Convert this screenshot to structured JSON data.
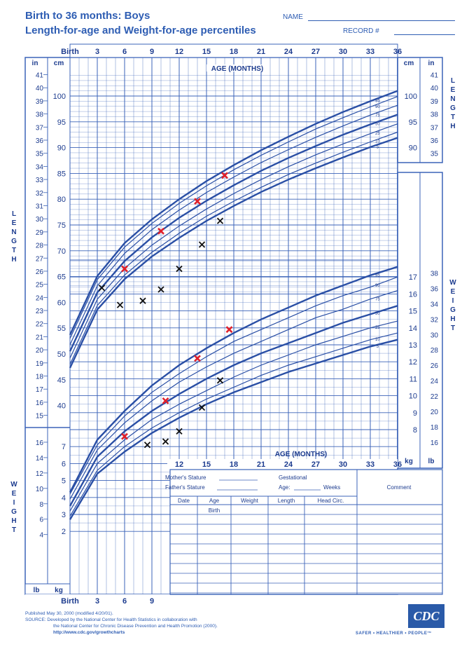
{
  "header": {
    "title": "Birth to 36 months: Boys",
    "subtitle": "Length-for-age and Weight-for-age percentiles",
    "name_label": "NAME",
    "record_label": "RECORD #"
  },
  "footer": {
    "line1": "Published May 30, 2000 (modified 4/20/01).",
    "line2": "SOURCE: Developed by the National Center for Health Statistics in collaboration with",
    "line3": "the National Center for Chronic Disease Prevention and Health Promotion (2000).",
    "line4": "http://www.cdc.gov/growthcharts",
    "logo": "CDC",
    "tagline": "SAFER • HEALTHIER • PEOPLE™"
  },
  "colors": {
    "grid": "#3b63b8",
    "curve": "#2a4fa5",
    "red_mark": "#e0202a",
    "black_mark": "#111111"
  },
  "chart_data": {
    "type": "line",
    "x_unit": "AGE (MONTHS)",
    "xlim": [
      0,
      36
    ],
    "x_ticks_top": [
      "Birth",
      "3",
      "6",
      "9",
      "12",
      "15",
      "18",
      "21",
      "24",
      "27",
      "30",
      "33",
      "36"
    ],
    "x_ticks_mid": [
      "12",
      "15",
      "18",
      "21",
      "24",
      "27",
      "30",
      "33",
      "36"
    ],
    "x_ticks_bottom": [
      "Birth",
      "3",
      "6",
      "9"
    ],
    "length_axis": {
      "title": "LENGTH",
      "cm_label": "cm",
      "in_label": "in",
      "cm_left": [
        "40",
        "45",
        "50",
        "55",
        "60",
        "65",
        "70",
        "75",
        "80",
        "85",
        "90",
        "95",
        "100"
      ],
      "cm_right": [
        "90",
        "95",
        "100"
      ],
      "in_left": [
        "15",
        "16",
        "17",
        "18",
        "19",
        "20",
        "21",
        "22",
        "23",
        "24",
        "25",
        "26",
        "27",
        "28",
        "29",
        "30",
        "31",
        "32",
        "33",
        "34",
        "35",
        "36",
        "37",
        "38",
        "39",
        "40",
        "41"
      ],
      "in_right": [
        "35",
        "36",
        "37",
        "38",
        "39",
        "40",
        "41"
      ]
    },
    "weight_axis": {
      "title": "WEIGHT",
      "kg_label": "kg",
      "lb_label": "lb",
      "kg_left": [
        "2",
        "3",
        "4",
        "5",
        "6",
        "7"
      ],
      "lb_left": [
        "4",
        "6",
        "8",
        "10",
        "12",
        "14",
        "16"
      ],
      "kg_right": [
        "8",
        "9",
        "10",
        "11",
        "12",
        "13",
        "14",
        "15",
        "16",
        "17"
      ],
      "lb_right": [
        "16",
        "18",
        "20",
        "22",
        "24",
        "26",
        "28",
        "30",
        "32",
        "34",
        "36",
        "38"
      ]
    },
    "length_percentiles": [
      {
        "name": "95",
        "x": [
          0,
          3,
          6,
          9,
          12,
          15,
          18,
          21,
          24,
          27,
          30,
          33,
          36
        ],
        "values": [
          53.7,
          65.1,
          71.5,
          76.1,
          80.0,
          83.5,
          86.6,
          89.5,
          92.1,
          94.6,
          96.9,
          99.0,
          101.0
        ]
      },
      {
        "name": "90",
        "x": [
          0,
          3,
          6,
          9,
          12,
          15,
          18,
          21,
          24,
          27,
          30,
          33,
          36
        ],
        "values": [
          53.0,
          64.4,
          70.7,
          75.3,
          79.2,
          82.6,
          85.7,
          88.5,
          91.1,
          93.6,
          95.8,
          97.9,
          99.9
        ]
      },
      {
        "name": "75",
        "x": [
          0,
          3,
          6,
          9,
          12,
          15,
          18,
          21,
          24,
          27,
          30,
          33,
          36
        ],
        "values": [
          51.8,
          63.2,
          69.5,
          74.1,
          77.9,
          81.3,
          84.3,
          87.1,
          89.6,
          92.0,
          94.2,
          96.3,
          98.2
        ]
      },
      {
        "name": "50",
        "x": [
          0,
          3,
          6,
          9,
          12,
          15,
          18,
          21,
          24,
          27,
          30,
          33,
          36
        ],
        "values": [
          50.5,
          61.9,
          68.0,
          72.6,
          76.4,
          79.7,
          82.7,
          85.5,
          88.0,
          90.3,
          92.5,
          94.5,
          96.4
        ]
      },
      {
        "name": "25",
        "x": [
          0,
          3,
          6,
          9,
          12,
          15,
          18,
          21,
          24,
          27,
          30,
          33,
          36
        ],
        "values": [
          49.2,
          60.6,
          66.6,
          71.1,
          74.8,
          78.1,
          81.1,
          83.8,
          86.3,
          88.6,
          90.7,
          92.7,
          94.6
        ]
      },
      {
        "name": "10",
        "x": [
          0,
          3,
          6,
          9,
          12,
          15,
          18,
          21,
          24,
          27,
          30,
          33,
          36
        ],
        "values": [
          48.0,
          59.4,
          65.3,
          69.7,
          73.4,
          76.7,
          79.6,
          82.3,
          84.8,
          87.0,
          89.1,
          91.1,
          93.0
        ]
      },
      {
        "name": "5",
        "x": [
          0,
          3,
          6,
          9,
          12,
          15,
          18,
          21,
          24,
          27,
          30,
          33,
          36
        ],
        "values": [
          47.3,
          58.6,
          64.5,
          68.9,
          72.5,
          75.8,
          78.7,
          81.4,
          83.8,
          86.0,
          88.1,
          90.1,
          91.9
        ]
      }
    ],
    "weight_percentiles": [
      {
        "name": "95",
        "x": [
          0,
          3,
          6,
          9,
          12,
          15,
          18,
          21,
          24,
          27,
          30,
          33,
          36
        ],
        "values": [
          4.3,
          7.4,
          9.1,
          10.6,
          11.8,
          12.8,
          13.7,
          14.5,
          15.2,
          15.9,
          16.5,
          17.1,
          17.6
        ]
      },
      {
        "name": "90",
        "x": [
          0,
          3,
          6,
          9,
          12,
          15,
          18,
          21,
          24,
          27,
          30,
          33,
          36
        ],
        "values": [
          4.2,
          7.1,
          8.8,
          10.2,
          11.3,
          12.3,
          13.2,
          13.9,
          14.6,
          15.3,
          15.9,
          16.4,
          17.0
        ]
      },
      {
        "name": "75",
        "x": [
          0,
          3,
          6,
          9,
          12,
          15,
          18,
          21,
          24,
          27,
          30,
          33,
          36
        ],
        "values": [
          3.9,
          6.8,
          8.4,
          9.7,
          10.8,
          11.7,
          12.5,
          13.2,
          13.9,
          14.6,
          15.1,
          15.7,
          16.2
        ]
      },
      {
        "name": "50",
        "x": [
          0,
          3,
          6,
          9,
          12,
          15,
          18,
          21,
          24,
          27,
          30,
          33,
          36
        ],
        "values": [
          3.5,
          6.4,
          7.9,
          9.1,
          10.1,
          11.0,
          11.8,
          12.5,
          13.1,
          13.7,
          14.3,
          14.8,
          15.3
        ]
      },
      {
        "name": "25",
        "x": [
          0,
          3,
          6,
          9,
          12,
          15,
          18,
          21,
          24,
          27,
          30,
          33,
          36
        ],
        "values": [
          3.2,
          6.0,
          7.4,
          8.6,
          9.5,
          10.3,
          11.1,
          11.8,
          12.4,
          13.0,
          13.5,
          14.0,
          14.4
        ]
      },
      {
        "name": "10",
        "x": [
          0,
          3,
          6,
          9,
          12,
          15,
          18,
          21,
          24,
          27,
          30,
          33,
          36
        ],
        "values": [
          2.9,
          5.6,
          7.0,
          8.1,
          9.0,
          9.8,
          10.5,
          11.2,
          11.8,
          12.3,
          12.8,
          13.3,
          13.7
        ]
      },
      {
        "name": "5",
        "x": [
          0,
          3,
          6,
          9,
          12,
          15,
          18,
          21,
          24,
          27,
          30,
          33,
          36
        ],
        "values": [
          2.7,
          5.4,
          6.7,
          7.8,
          8.7,
          9.5,
          10.2,
          10.8,
          11.4,
          11.9,
          12.4,
          12.9,
          13.3
        ]
      }
    ],
    "red_length_marks": [
      {
        "x": 6,
        "y": 66.5
      },
      {
        "x": 10,
        "y": 73.8
      },
      {
        "x": 14,
        "y": 79.6
      },
      {
        "x": 17,
        "y": 84.6
      }
    ],
    "black_length_marks": [
      {
        "x": 3.5,
        "y": 62.8
      },
      {
        "x": 5.5,
        "y": 59.5
      },
      {
        "x": 8,
        "y": 60.3
      },
      {
        "x": 10,
        "y": 62.5
      },
      {
        "x": 12,
        "y": 66.5
      },
      {
        "x": 14.5,
        "y": 71.2
      },
      {
        "x": 16.5,
        "y": 75.8
      }
    ],
    "red_weight_marks": [
      {
        "x": 6,
        "y": 7.6
      },
      {
        "x": 10.5,
        "y": 9.7
      },
      {
        "x": 14,
        "y": 12.2
      },
      {
        "x": 17.5,
        "y": 13.9
      }
    ],
    "black_weight_marks": [
      {
        "x": 8.5,
        "y": 7.1
      },
      {
        "x": 10.5,
        "y": 7.3
      },
      {
        "x": 12,
        "y": 7.9
      },
      {
        "x": 14.5,
        "y": 9.3
      },
      {
        "x": 16.5,
        "y": 10.9
      }
    ],
    "grid": true
  },
  "record_table": {
    "mothers_stature": "Mother's Stature",
    "fathers_stature": "Father's Stature",
    "gestational": "Gestational",
    "age_label": "Age:",
    "weeks": "Weeks",
    "comment": "Comment",
    "columns": [
      "Date",
      "Age",
      "Weight",
      "Length",
      "Head  Circ."
    ],
    "first_row_age": "Birth"
  }
}
